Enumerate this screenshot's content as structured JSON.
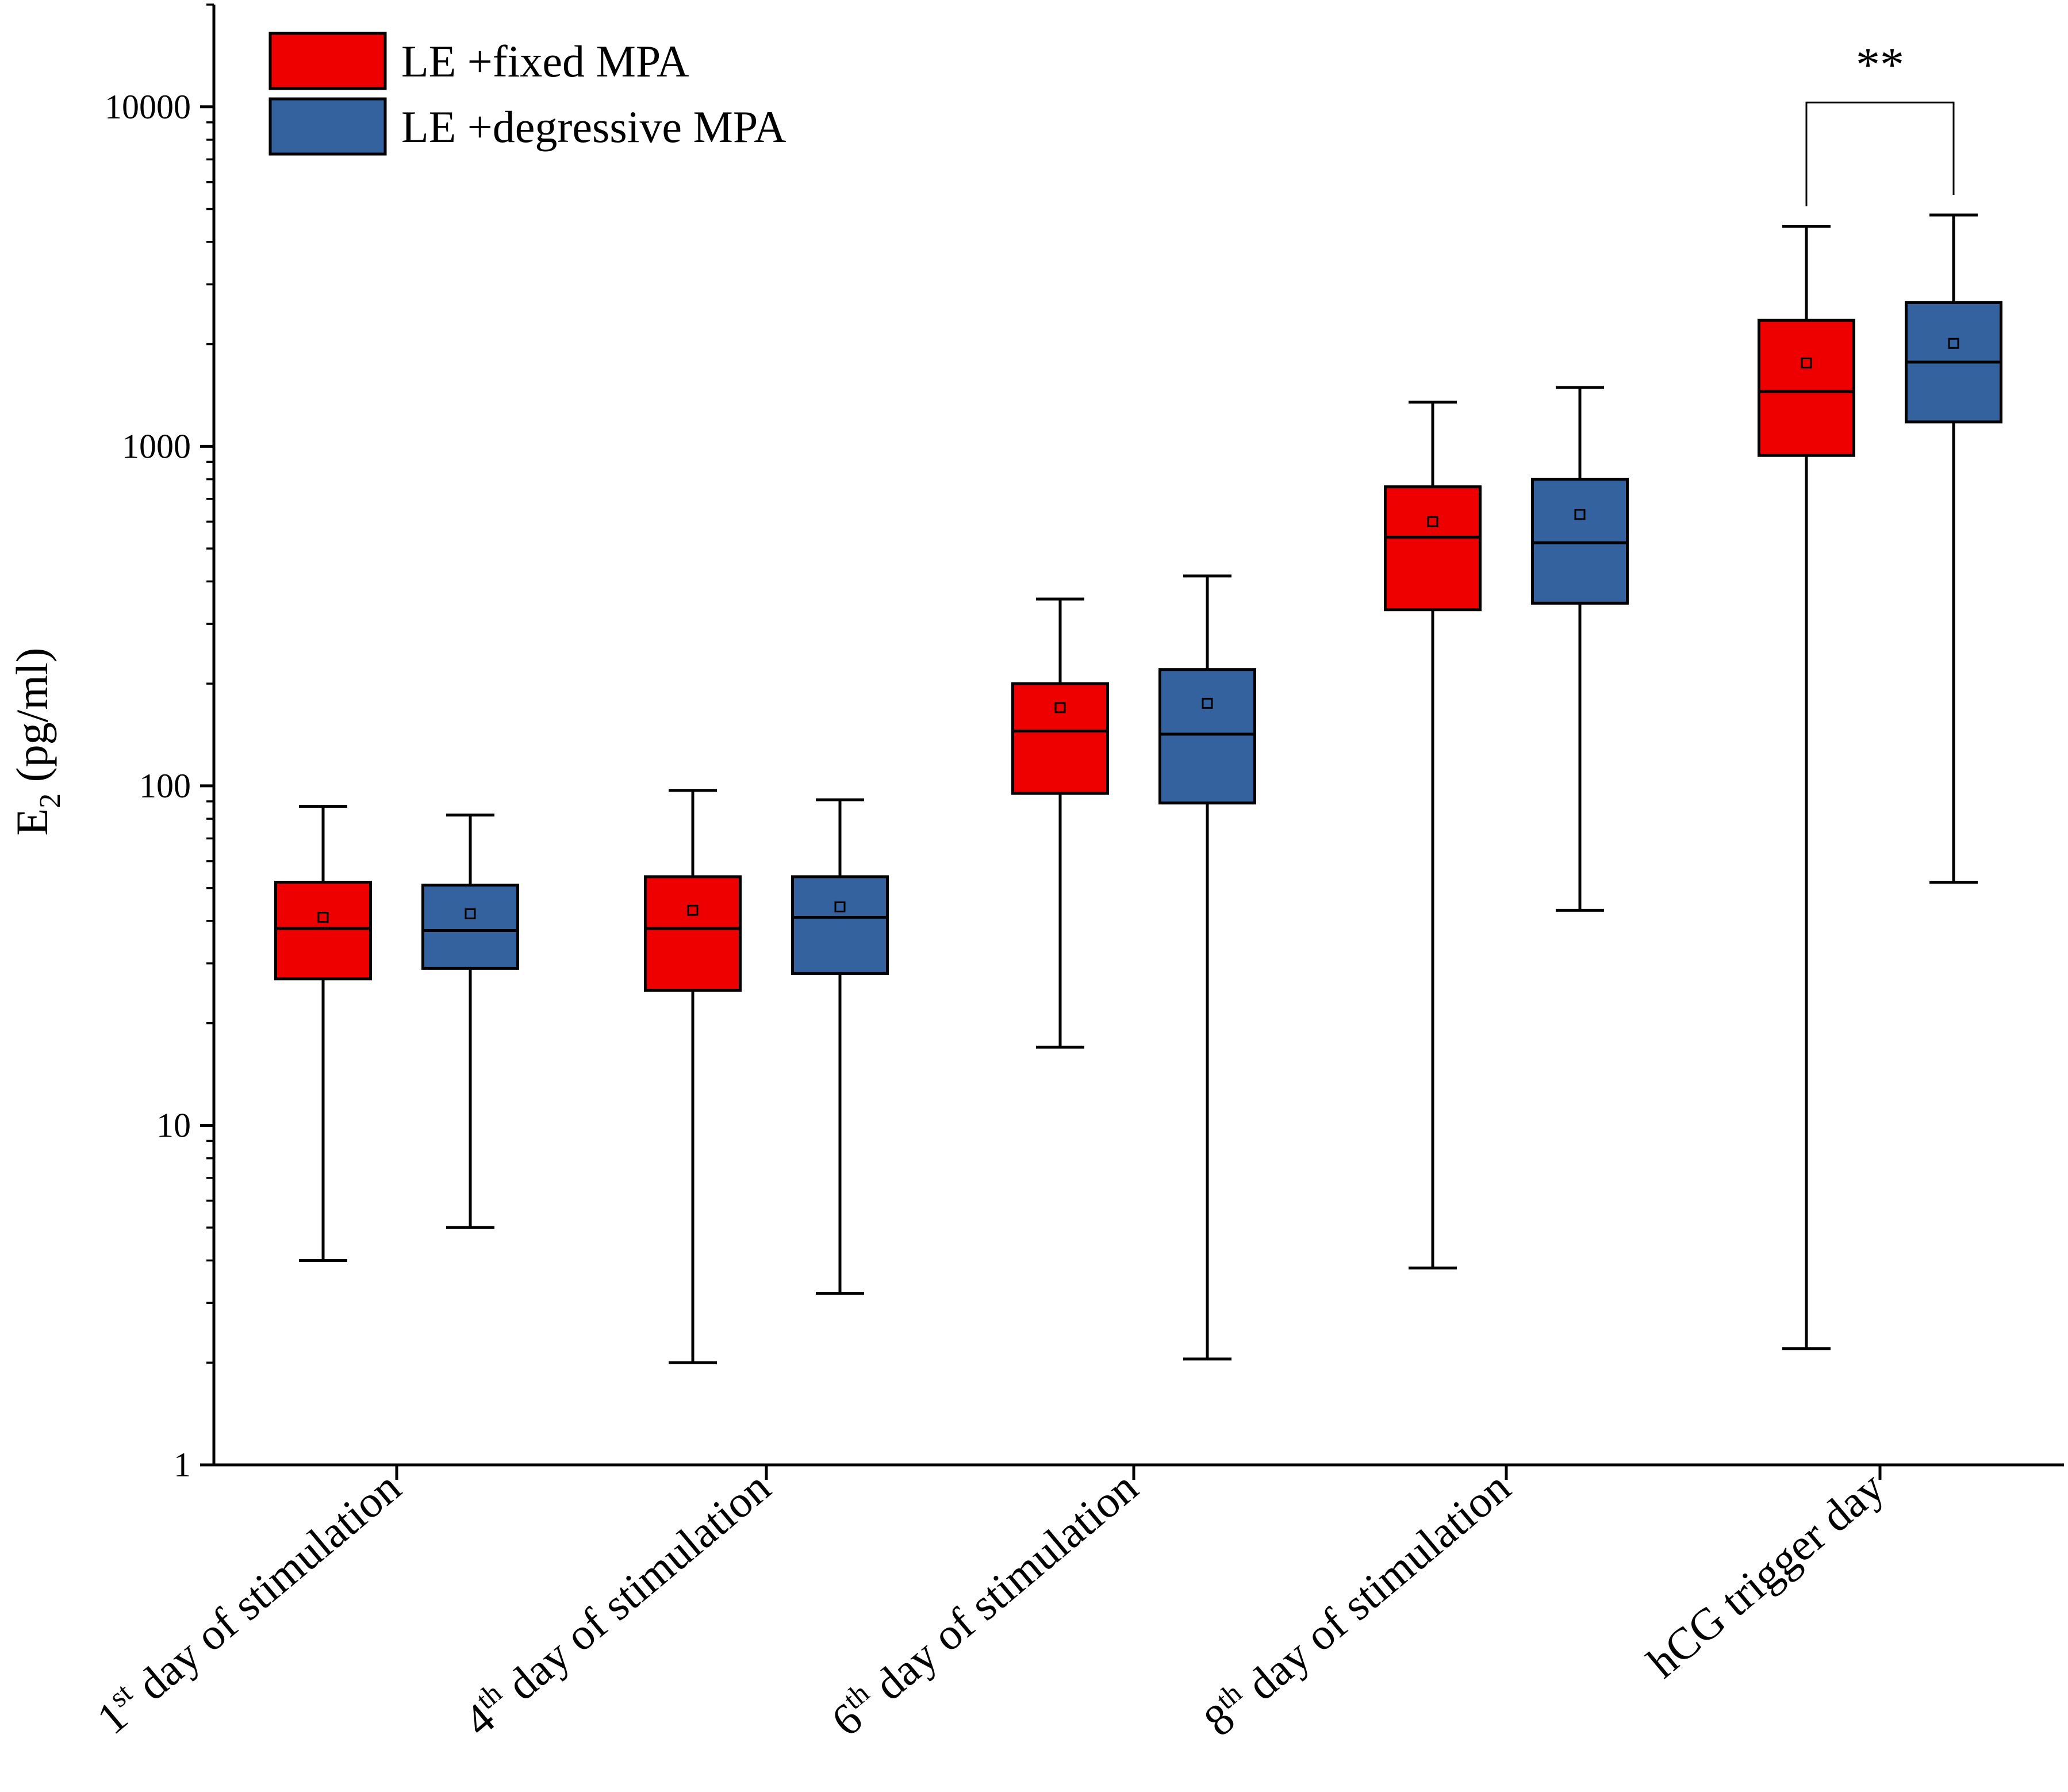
{
  "chart_data": {
    "type": "boxplot",
    "yscale": "log",
    "ylabel": {
      "base": "E",
      "sub": "2",
      "rest": " (pg/ml)"
    },
    "ylim": [
      1,
      20000
    ],
    "yticks": [
      1,
      10,
      100,
      1000,
      10000
    ],
    "ytick_labels": [
      "1",
      "10",
      "100",
      "1000",
      "10000"
    ],
    "categories": [
      {
        "ord": "1",
        "sup": "st",
        "rest": " day of stimulation"
      },
      {
        "ord": "4",
        "sup": "th",
        "rest": " day of stimulation"
      },
      {
        "ord": "6",
        "sup": "th",
        "rest": " day of stimulation"
      },
      {
        "ord": "8",
        "sup": "th",
        "rest": " day of stimulation"
      },
      {
        "ord": "",
        "sup": "",
        "rest": "hCG trigger day"
      }
    ],
    "series": [
      {
        "name": "LE +fixed MPA",
        "color": "#ee0000",
        "boxes": [
          {
            "min": 4.0,
            "q1": 27,
            "median": 38,
            "q3": 52,
            "max": 87,
            "mean": 41
          },
          {
            "min": 2.0,
            "q1": 25,
            "median": 38,
            "q3": 54,
            "max": 97,
            "mean": 43
          },
          {
            "min": 17,
            "q1": 95,
            "median": 145,
            "q3": 200,
            "max": 355,
            "mean": 170
          },
          {
            "min": 3.8,
            "q1": 330,
            "median": 540,
            "q3": 760,
            "max": 1350,
            "mean": 600
          },
          {
            "min": 2.2,
            "q1": 940,
            "median": 1450,
            "q3": 2350,
            "max": 4450,
            "mean": 1760
          }
        ]
      },
      {
        "name": "LE +degressive MPA",
        "color": "#33629e",
        "boxes": [
          {
            "min": 5.0,
            "q1": 29,
            "median": 37.5,
            "q3": 51,
            "max": 82,
            "mean": 42
          },
          {
            "min": 3.2,
            "q1": 28,
            "median": 41,
            "q3": 54,
            "max": 91,
            "mean": 44
          },
          {
            "min": 2.05,
            "q1": 89,
            "median": 142,
            "q3": 220,
            "max": 415,
            "mean": 175
          },
          {
            "min": 43,
            "q1": 345,
            "median": 520,
            "q3": 800,
            "max": 1490,
            "mean": 630
          },
          {
            "min": 52,
            "q1": 1180,
            "median": 1770,
            "q3": 2650,
            "max": 4800,
            "mean": 2010
          }
        ]
      }
    ],
    "annotations": [
      {
        "text": "**",
        "category_index": 4,
        "bracket_value": 10300
      }
    ],
    "legend": {
      "position": "top-left"
    }
  }
}
